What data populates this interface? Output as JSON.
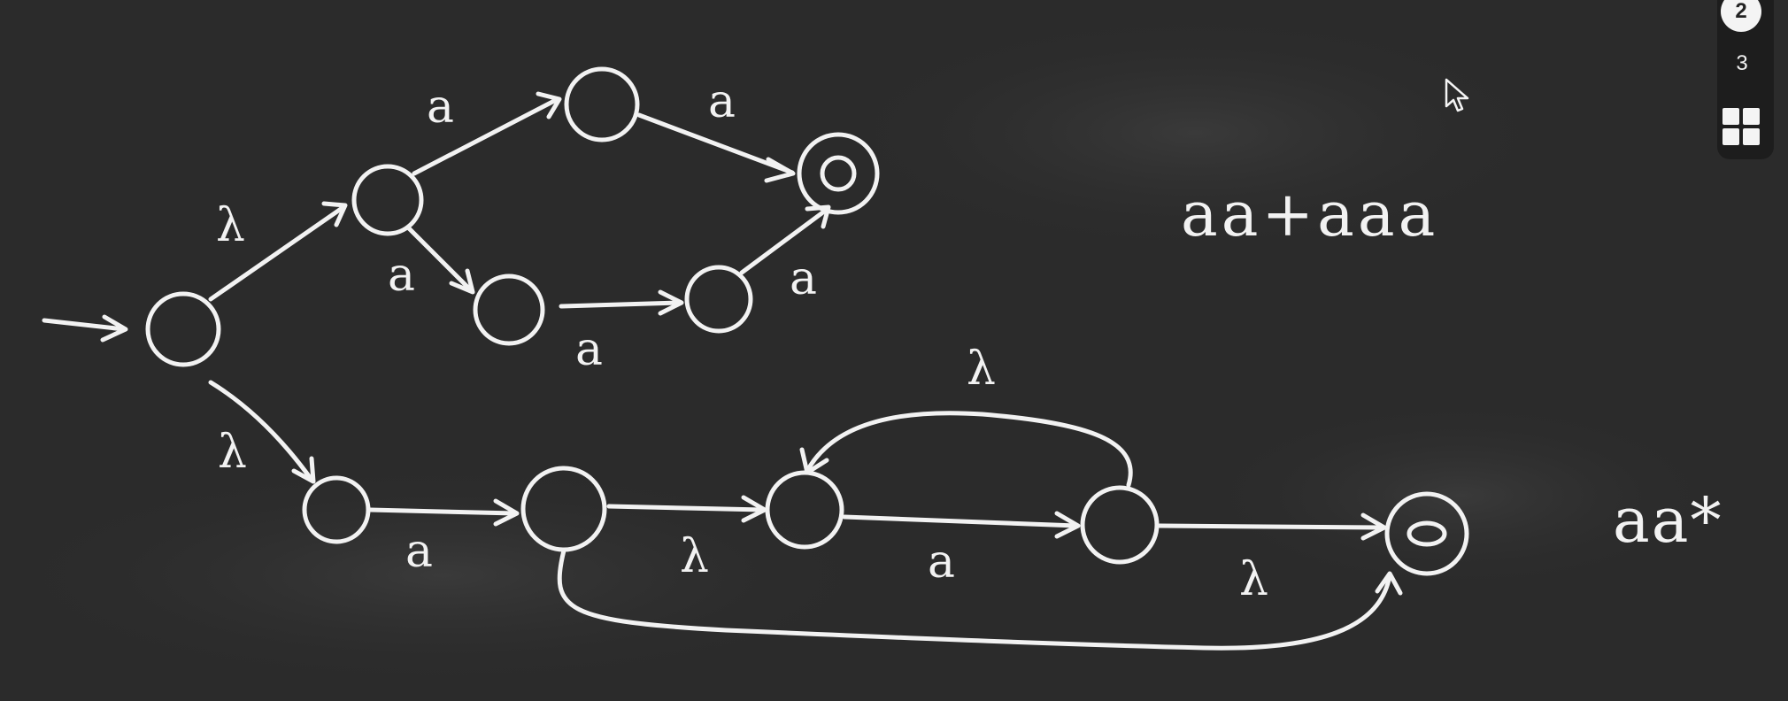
{
  "blackboard": {
    "label_aa_plus_aaa": "aa+aaa",
    "label_aa_star": "aa*"
  },
  "symbols": {
    "a": "a",
    "lambda": "λ"
  },
  "page_nav": {
    "current_page": "2",
    "next_page": "3"
  },
  "icons": {
    "grid": "grid-view-icon",
    "cursor": "mouse-pointer-icon"
  },
  "colors": {
    "board": "#2b2b2b",
    "chalk": "#f2f2f2"
  }
}
